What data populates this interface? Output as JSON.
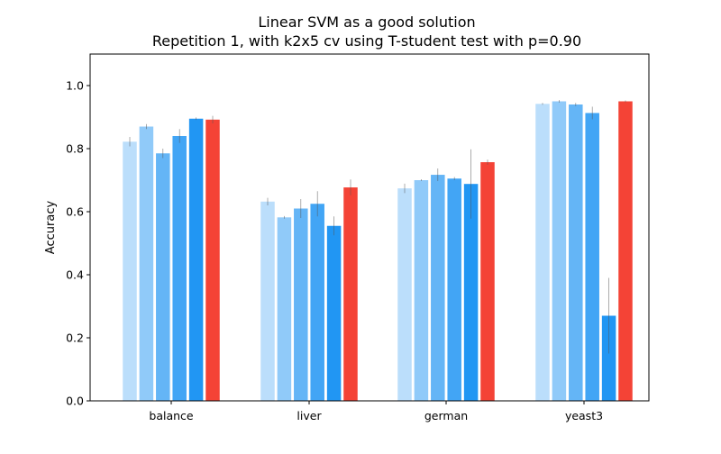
{
  "chart_data": {
    "type": "bar",
    "title": "Linear SVM as a good solution",
    "subtitle": "Repetition 1, with k2x5 cv using T-student test with p=0.90",
    "xlabel": "",
    "ylabel": "Accuracy",
    "ylim": [
      0,
      1.1
    ],
    "yticks": [
      "0.0",
      "0.2",
      "0.4",
      "0.6",
      "0.8",
      "1.0"
    ],
    "categories": [
      "balance",
      "liver",
      "german",
      "yeast3"
    ],
    "grid": false,
    "series": [
      {
        "color": "#bbdefb",
        "values": [
          0.822,
          0.632,
          0.674,
          0.942
        ],
        "errors": [
          0.015,
          0.012,
          0.015,
          0.003
        ]
      },
      {
        "color": "#90caf9",
        "values": [
          0.87,
          0.582,
          0.7,
          0.95
        ],
        "errors": [
          0.008,
          0.004,
          0.003,
          0.004
        ]
      },
      {
        "color": "#64b5f6",
        "values": [
          0.785,
          0.61,
          0.717,
          0.94
        ],
        "errors": [
          0.015,
          0.03,
          0.02,
          0.005
        ]
      },
      {
        "color": "#42a5f5",
        "values": [
          0.84,
          0.625,
          0.705,
          0.913
        ],
        "errors": [
          0.022,
          0.04,
          0.005,
          0.02
        ]
      },
      {
        "color": "#2196f3",
        "values": [
          0.895,
          0.555,
          0.688,
          0.27
        ],
        "errors": [
          0.004,
          0.03,
          0.11,
          0.12
        ]
      },
      {
        "color": "#f44336",
        "values": [
          0.892,
          0.677,
          0.757,
          0.95
        ],
        "errors": [
          0.012,
          0.025,
          0.008,
          0.003
        ]
      }
    ]
  }
}
